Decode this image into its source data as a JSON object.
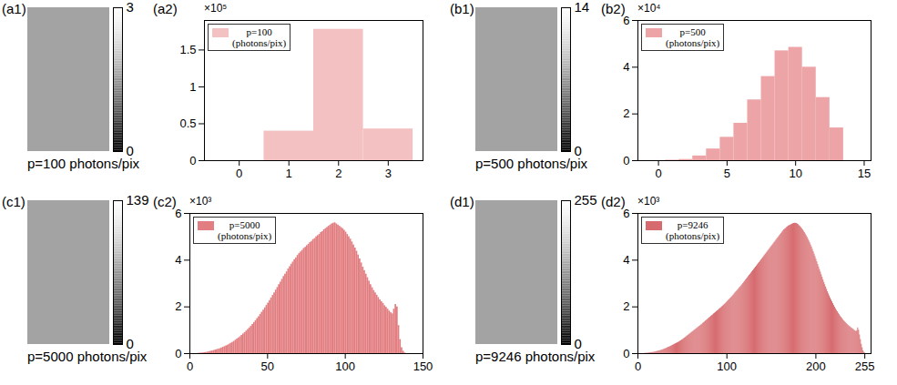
{
  "image_panels": [
    {
      "panel": "(a1)",
      "caption": "p=100 photons/pix",
      "colorbar": {
        "range": [
          0,
          3
        ],
        "ticks": [
          0,
          3
        ]
      }
    },
    {
      "panel": "(b1)",
      "caption": "p=500 photons/pix",
      "colorbar": {
        "range": [
          0,
          14
        ],
        "ticks": [
          0,
          14
        ]
      }
    },
    {
      "panel": "(c1)",
      "caption": "p=5000 photons/pix",
      "colorbar": {
        "range": [
          0,
          139
        ],
        "ticks": [
          0,
          139
        ]
      }
    },
    {
      "panel": "(d1)",
      "caption": "p=9246 photons/pix",
      "colorbar": {
        "range": [
          0,
          255
        ],
        "ticks": [
          0,
          255
        ]
      }
    }
  ],
  "chart_data": [
    {
      "panel": "(a2)",
      "type": "histogram",
      "annotation": "×10⁵",
      "legend": "top-left",
      "xlim": [
        -0.7,
        3.7
      ],
      "xticks": [
        0,
        1,
        2,
        3
      ],
      "ylim": [
        0,
        1.9
      ],
      "yticks": [
        0,
        0.5,
        1,
        1.5
      ],
      "bins": [
        0.5,
        1.5,
        2.5,
        3.5
      ],
      "series": [
        {
          "name": "p=100\n(photons/pix)",
          "color": "#f4c1c3",
          "values": [
            0.4,
            1.78,
            0.43
          ]
        }
      ]
    },
    {
      "panel": "(b2)",
      "type": "histogram",
      "annotation": "×10⁴",
      "legend": "top-left",
      "xlim": [
        -1.5,
        15.5
      ],
      "xticks": [
        0,
        5,
        10,
        15
      ],
      "ylim": [
        0,
        6
      ],
      "yticks": [
        0,
        2,
        4,
        6
      ],
      "bins": [
        0.5,
        1.5,
        2.5,
        3.5,
        4.5,
        5.5,
        6.5,
        7.5,
        8.5,
        9.5,
        10.5,
        11.5,
        12.5,
        13.5
      ],
      "series": [
        {
          "name": "p=500\n(photons/pix)",
          "color": "#eda4a7",
          "values": [
            0.02,
            0.05,
            0.2,
            0.5,
            1.0,
            1.6,
            2.6,
            3.6,
            4.7,
            4.85,
            4.0,
            2.7,
            1.4
          ]
        }
      ]
    },
    {
      "panel": "(c2)",
      "type": "histogram",
      "annotation": "×10³",
      "legend": "top-left",
      "xlim": [
        0,
        150
      ],
      "xticks": [
        0,
        50,
        100,
        150
      ],
      "ylim": [
        0,
        6
      ],
      "yticks": [
        0,
        2,
        4,
        6
      ],
      "bins": [
        0,
        1,
        2,
        3,
        4,
        5,
        6,
        7,
        8,
        9,
        10,
        11,
        12,
        13,
        14,
        15,
        16,
        17,
        18,
        19,
        20,
        21,
        22,
        23,
        24,
        25,
        26,
        27,
        28,
        29,
        30,
        31,
        32,
        33,
        34,
        35,
        36,
        37,
        38,
        39,
        40,
        41,
        42,
        43,
        44,
        45,
        46,
        47,
        48,
        49,
        50,
        51,
        52,
        53,
        54,
        55,
        56,
        57,
        58,
        59,
        60,
        61,
        62,
        63,
        64,
        65,
        66,
        67,
        68,
        69,
        70,
        71,
        72,
        73,
        74,
        75,
        76,
        77,
        78,
        79,
        80,
        81,
        82,
        83,
        84,
        85,
        86,
        87,
        88,
        89,
        90,
        91,
        92,
        93,
        94,
        95,
        96,
        97,
        98,
        99,
        100,
        101,
        102,
        103,
        104,
        105,
        106,
        107,
        108,
        109,
        110,
        111,
        112,
        113,
        114,
        115,
        116,
        117,
        118,
        119,
        120,
        121,
        122,
        123,
        124,
        125,
        126,
        127,
        128,
        129,
        130,
        131,
        132,
        133,
        134,
        135,
        136,
        137,
        138,
        139,
        140
      ],
      "series": [
        {
          "name": "p=5000\n(photons/pix)",
          "color": "#e27e81",
          "values": [
            0,
            0,
            0,
            0,
            0,
            0.01,
            0.02,
            0.02,
            0.03,
            0.04,
            0.05,
            0.06,
            0.08,
            0.1,
            0.11,
            0.13,
            0.15,
            0.17,
            0.19,
            0.21,
            0.24,
            0.27,
            0.3,
            0.33,
            0.36,
            0.4,
            0.44,
            0.48,
            0.52,
            0.57,
            0.62,
            0.67,
            0.72,
            0.78,
            0.84,
            0.9,
            0.96,
            1.03,
            1.1,
            1.17,
            1.25,
            1.33,
            1.41,
            1.5,
            1.58,
            1.68,
            1.77,
            1.86,
            1.96,
            2.06,
            2.16,
            2.27,
            2.38,
            2.49,
            2.6,
            2.72,
            2.83,
            2.95,
            3.06,
            3.18,
            3.3,
            3.4,
            3.5,
            3.62,
            3.72,
            3.83,
            3.92,
            4.02,
            4.1,
            4.2,
            4.28,
            4.35,
            4.42,
            4.5,
            4.55,
            4.62,
            4.68,
            4.75,
            4.8,
            4.88,
            4.92,
            5.0,
            5.05,
            5.1,
            5.18,
            5.22,
            5.3,
            5.35,
            5.4,
            5.45,
            5.5,
            5.55,
            5.58,
            5.6,
            5.55,
            5.5,
            5.45,
            5.4,
            5.35,
            5.28,
            5.2,
            5.1,
            5.0,
            4.9,
            4.78,
            4.65,
            4.52,
            4.38,
            4.22,
            4.05,
            3.88,
            3.7,
            3.55,
            3.4,
            3.25,
            3.1,
            2.95,
            2.82,
            2.7,
            2.6,
            2.5,
            2.4,
            2.3,
            2.22,
            2.15,
            2.05,
            1.98,
            1.9,
            1.82,
            1.75,
            1.7,
            1.9,
            2.1,
            2.0,
            1.2,
            0.6,
            0.25,
            0.1,
            0.03,
            0
          ]
        }
      ]
    },
    {
      "panel": "(d2)",
      "type": "histogram",
      "annotation": "×10³",
      "legend": "top-left",
      "xlim": [
        0,
        262
      ],
      "xticks": [
        0,
        100,
        200,
        255
      ],
      "ylim": [
        0,
        6
      ],
      "yticks": [
        0,
        2,
        4,
        6
      ],
      "bins": [
        0,
        1,
        2,
        3,
        4,
        5,
        6,
        7,
        8,
        9,
        10,
        11,
        12,
        13,
        14,
        15,
        16,
        17,
        18,
        19,
        20,
        21,
        22,
        23,
        24,
        25,
        26,
        27,
        28,
        29,
        30,
        31,
        32,
        33,
        34,
        35,
        36,
        37,
        38,
        39,
        40,
        41,
        42,
        43,
        44,
        45,
        46,
        47,
        48,
        49,
        50,
        51,
        52,
        53,
        54,
        55,
        56,
        57,
        58,
        59,
        60,
        61,
        62,
        63,
        64,
        65,
        66,
        67,
        68,
        69,
        70,
        71,
        72,
        73,
        74,
        75,
        76,
        77,
        78,
        79,
        80,
        81,
        82,
        83,
        84,
        85,
        86,
        87,
        88,
        89,
        90,
        91,
        92,
        93,
        94,
        95,
        96,
        97,
        98,
        99,
        100,
        101,
        102,
        103,
        104,
        105,
        106,
        107,
        108,
        109,
        110,
        111,
        112,
        113,
        114,
        115,
        116,
        117,
        118,
        119,
        120,
        121,
        122,
        123,
        124,
        125,
        126,
        127,
        128,
        129,
        130,
        131,
        132,
        133,
        134,
        135,
        136,
        137,
        138,
        139,
        140,
        141,
        142,
        143,
        144,
        145,
        146,
        147,
        148,
        149,
        150,
        151,
        152,
        153,
        154,
        155,
        156,
        157,
        158,
        159,
        160,
        161,
        162,
        163,
        164,
        165,
        166,
        167,
        168,
        169,
        170,
        171,
        172,
        173,
        174,
        175,
        176,
        177,
        178,
        179,
        180,
        181,
        182,
        183,
        184,
        185,
        186,
        187,
        188,
        189,
        190,
        191,
        192,
        193,
        194,
        195,
        196,
        197,
        198,
        199,
        200,
        201,
        202,
        203,
        204,
        205,
        206,
        207,
        208,
        209,
        210,
        211,
        212,
        213,
        214,
        215,
        216,
        217,
        218,
        219,
        220,
        221,
        222,
        223,
        224,
        225,
        226,
        227,
        228,
        229,
        230,
        231,
        232,
        233,
        234,
        235,
        236,
        237,
        238,
        239,
        240,
        241,
        242,
        243,
        244,
        245,
        246,
        247,
        248,
        249,
        250,
        251,
        252,
        253,
        254,
        255,
        256
      ],
      "series": [
        {
          "name": "p=9246\n(photons/pix)",
          "color": "#d66a6e",
          "values": [
            0,
            0,
            0,
            0,
            0,
            0,
            0,
            0.01,
            0.01,
            0.01,
            0.02,
            0.02,
            0.03,
            0.03,
            0.04,
            0.04,
            0.05,
            0.05,
            0.06,
            0.07,
            0.08,
            0.09,
            0.1,
            0.11,
            0.12,
            0.13,
            0.14,
            0.15,
            0.17,
            0.18,
            0.2,
            0.21,
            0.23,
            0.25,
            0.27,
            0.28,
            0.3,
            0.32,
            0.34,
            0.36,
            0.38,
            0.4,
            0.42,
            0.44,
            0.46,
            0.48,
            0.5,
            0.53,
            0.55,
            0.58,
            0.6,
            0.63,
            0.66,
            0.69,
            0.72,
            0.75,
            0.78,
            0.81,
            0.84,
            0.87,
            0.9,
            0.93,
            0.96,
            0.99,
            1.02,
            1.05,
            1.08,
            1.11,
            1.14,
            1.17,
            1.2,
            1.23,
            1.26,
            1.3,
            1.33,
            1.36,
            1.4,
            1.43,
            1.46,
            1.5,
            1.53,
            1.56,
            1.6,
            1.63,
            1.66,
            1.7,
            1.73,
            1.76,
            1.8,
            1.83,
            1.86,
            1.9,
            1.93,
            1.96,
            2.0,
            2.03,
            2.07,
            2.1,
            2.14,
            2.18,
            2.22,
            2.26,
            2.3,
            2.34,
            2.38,
            2.42,
            2.46,
            2.5,
            2.55,
            2.6,
            2.64,
            2.68,
            2.72,
            2.77,
            2.82,
            2.86,
            2.9,
            2.95,
            3.0,
            3.05,
            3.1,
            3.15,
            3.2,
            3.25,
            3.3,
            3.35,
            3.4,
            3.45,
            3.5,
            3.55,
            3.6,
            3.65,
            3.7,
            3.75,
            3.8,
            3.85,
            3.9,
            3.95,
            4.0,
            4.05,
            4.1,
            4.15,
            4.2,
            4.25,
            4.3,
            4.35,
            4.4,
            4.45,
            4.5,
            4.55,
            4.6,
            4.65,
            4.7,
            4.75,
            4.8,
            4.85,
            4.9,
            4.95,
            5.0,
            5.05,
            5.1,
            5.15,
            5.2,
            5.25,
            5.3,
            5.33,
            5.36,
            5.4,
            5.43,
            5.46,
            5.48,
            5.5,
            5.52,
            5.54,
            5.56,
            5.57,
            5.58,
            5.58,
            5.57,
            5.55,
            5.52,
            5.48,
            5.44,
            5.4,
            5.35,
            5.3,
            5.24,
            5.18,
            5.12,
            5.05,
            4.98,
            4.9,
            4.82,
            4.74,
            4.65,
            4.56,
            4.46,
            4.36,
            4.26,
            4.15,
            4.04,
            3.93,
            3.82,
            3.71,
            3.6,
            3.49,
            3.38,
            3.27,
            3.16,
            3.05,
            2.95,
            2.85,
            2.75,
            2.65,
            2.56,
            2.47,
            2.38,
            2.3,
            2.22,
            2.14,
            2.06,
            1.99,
            1.92,
            1.85,
            1.79,
            1.73,
            1.67,
            1.61,
            1.56,
            1.51,
            1.46,
            1.41,
            1.37,
            1.33,
            1.29,
            1.25,
            1.21,
            1.18,
            1.15,
            1.12,
            1.09,
            1.06,
            1.03,
            1.0,
            0.97,
            0.94,
            0.98,
            1.1,
            1.0,
            0.8,
            0.6,
            0.4,
            0.25,
            0.12,
            0.05,
            0.02
          ]
        }
      ]
    }
  ]
}
